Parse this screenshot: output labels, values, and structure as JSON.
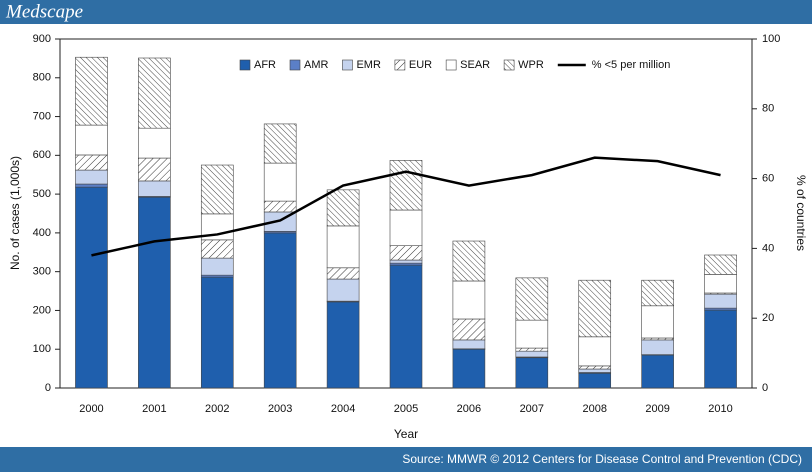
{
  "header": {
    "logo": "Medscape"
  },
  "footer": {
    "source": "Source: MMWR © 2012 Centers for Disease Control and Prevention (CDC)"
  },
  "chart_data": {
    "type": "bar",
    "stacked": true,
    "x_label": "Year",
    "y_label": "No. of cases (1,000s)",
    "y2_label": "% of countries",
    "categories": [
      "2000",
      "2001",
      "2002",
      "2003",
      "2004",
      "2005",
      "2006",
      "2007",
      "2008",
      "2009",
      "2010"
    ],
    "series": [
      {
        "name": "AFR",
        "color": "#1f5fad",
        "values": [
          518,
          492,
          286,
          400,
          222,
          317,
          100,
          78,
          38,
          85,
          201
        ]
      },
      {
        "name": "AMR",
        "color": "#5b7fc7",
        "values": [
          8,
          2,
          5,
          4,
          2,
          5,
          1,
          2,
          2,
          1,
          5
        ]
      },
      {
        "name": "EMR",
        "color": "#c5d3ee",
        "values": [
          36,
          40,
          44,
          50,
          57,
          8,
          23,
          15,
          9,
          38,
          36
        ]
      },
      {
        "name": "EUR",
        "color": "#ffffff",
        "hatch": "forward",
        "values": [
          39,
          59,
          47,
          28,
          29,
          37,
          54,
          8,
          8,
          5,
          3
        ]
      },
      {
        "name": "SEAR",
        "color": "#ffffff",
        "values": [
          77,
          77,
          67,
          98,
          108,
          92,
          98,
          72,
          75,
          83,
          48
        ]
      },
      {
        "name": "WPR",
        "color": "#ffffff",
        "hatch": "back",
        "values": [
          175,
          181,
          126,
          101,
          93,
          128,
          103,
          109,
          146,
          66,
          50
        ]
      },
      {
        "name": "% <5 per million",
        "type": "line",
        "axis": "y2",
        "color": "#000000",
        "values": [
          38,
          42,
          44,
          48,
          58,
          62,
          58,
          61,
          66,
          65,
          61
        ]
      }
    ],
    "ylim": [
      0,
      900
    ],
    "yticks": [
      0,
      100,
      200,
      300,
      400,
      500,
      600,
      700,
      800,
      900
    ],
    "y2lim": [
      0,
      100
    ],
    "y2ticks": [
      0,
      20,
      40,
      60,
      80,
      100
    ],
    "legend": "top"
  }
}
